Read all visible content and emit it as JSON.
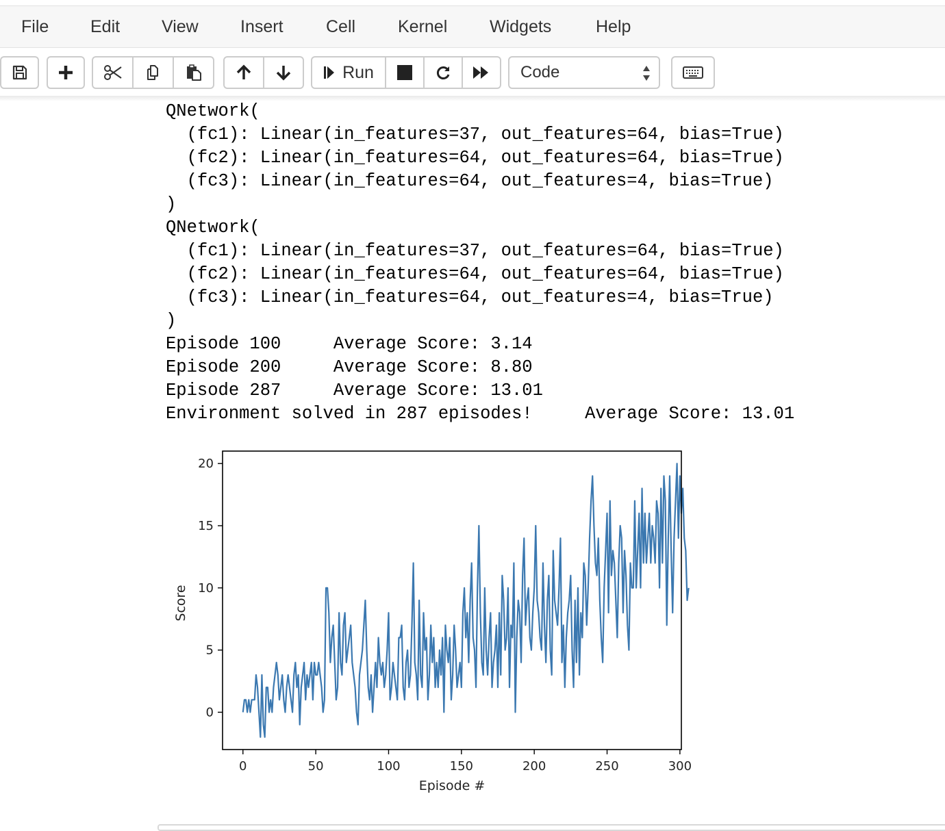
{
  "menu": [
    "File",
    "Edit",
    "View",
    "Insert",
    "Cell",
    "Kernel",
    "Widgets",
    "Help"
  ],
  "toolbar": {
    "run_label": "Run",
    "cell_type": "Code",
    "icons": [
      "save-icon",
      "plus-icon",
      "cut-icon",
      "copy-icon",
      "paste-icon",
      "arrow-up-icon",
      "arrow-down-icon",
      "step-forward-icon",
      "stop-icon",
      "restart-icon",
      "fast-forward-icon",
      "keyboard-icon"
    ]
  },
  "output_lines": [
    "QNetwork(",
    "  (fc1): Linear(in_features=37, out_features=64, bias=True)",
    "  (fc2): Linear(in_features=64, out_features=64, bias=True)",
    "  (fc3): Linear(in_features=64, out_features=4, bias=True)",
    ")",
    "QNetwork(",
    "  (fc1): Linear(in_features=37, out_features=64, bias=True)",
    "  (fc2): Linear(in_features=64, out_features=64, bias=True)",
    "  (fc3): Linear(in_features=64, out_features=4, bias=True)",
    ")",
    "Episode 100\tAverage Score: 3.14",
    "Episode 200\tAverage Score: 8.80",
    "Episode 287\tAverage Score: 13.01",
    "Environment solved in 287 episodes!\tAverage Score: 13.01"
  ],
  "chart_data": {
    "type": "line",
    "title": "",
    "xlabel": "Episode #",
    "ylabel": "Score",
    "xlim": [
      -14,
      301
    ],
    "ylim": [
      -3,
      21
    ],
    "xticks": [
      0,
      50,
      100,
      150,
      200,
      250,
      300
    ],
    "yticks": [
      0,
      5,
      10,
      15,
      20
    ],
    "grid": false,
    "line_color": "#3b78b0",
    "series": [
      {
        "values": [
          0,
          1,
          1,
          0,
          1,
          0,
          1,
          1,
          1,
          3,
          2,
          0,
          -2,
          3,
          -1,
          -2,
          2,
          2,
          0,
          1,
          0,
          2,
          3,
          4,
          3,
          1,
          2,
          3,
          1,
          0,
          2,
          3,
          2,
          1,
          0,
          3,
          4,
          2,
          3,
          -1,
          2,
          3,
          4,
          1,
          3,
          2,
          3,
          4,
          1,
          4,
          3,
          3,
          4,
          3,
          2,
          0,
          1,
          10,
          10,
          8,
          4,
          6,
          7,
          4,
          1,
          2,
          8,
          4,
          3,
          7,
          8,
          4,
          5,
          6,
          7,
          4,
          3,
          2,
          0,
          -1,
          3,
          4,
          5,
          7,
          9,
          5,
          2,
          1,
          3,
          0,
          2,
          4,
          2,
          6,
          4,
          3,
          4,
          2,
          3,
          5,
          8,
          1,
          2,
          4,
          3,
          2,
          1,
          6,
          6,
          7,
          2,
          1,
          4,
          5,
          2,
          3,
          7,
          12,
          4,
          3,
          1,
          9,
          3,
          2,
          8,
          5,
          6,
          1,
          3,
          7,
          4,
          6,
          2,
          4,
          2,
          5,
          3,
          6,
          0,
          7,
          5,
          4,
          6,
          1,
          3,
          7,
          5,
          2,
          3,
          4,
          2,
          8,
          10,
          6,
          8,
          4,
          9,
          12,
          6,
          5,
          2,
          10,
          15,
          8,
          4,
          3,
          10,
          5,
          3,
          6,
          8,
          2,
          4,
          5,
          7,
          2,
          8,
          3,
          11,
          9,
          5,
          6,
          10,
          2,
          7,
          6,
          12,
          0,
          6,
          9,
          8,
          4,
          11,
          14,
          7,
          9,
          10,
          6,
          5,
          8,
          10,
          15,
          9,
          8,
          6,
          5,
          12,
          7,
          4,
          9,
          11,
          5,
          3,
          13,
          9,
          8,
          7,
          10,
          14,
          4,
          7,
          2,
          6,
          8,
          9,
          11,
          5,
          2,
          9,
          4,
          10,
          3,
          8,
          6,
          12,
          11,
          7,
          10,
          14,
          17,
          19,
          15,
          12,
          11,
          14,
          9,
          6,
          4,
          10,
          13,
          16,
          8,
          17,
          11,
          13,
          12,
          9,
          6,
          12,
          15,
          14,
          8,
          13,
          11,
          7,
          5,
          12,
          10,
          10,
          17,
          10,
          13,
          16,
          10,
          18,
          12,
          16,
          12,
          14,
          16,
          12,
          15,
          14,
          12,
          17,
          16,
          10,
          18,
          12,
          19,
          17,
          7,
          14,
          19,
          13,
          8,
          14,
          17,
          20,
          14,
          19,
          16,
          18,
          14,
          13,
          9,
          10
        ],
        "color": "#3b78b0"
      }
    ]
  }
}
